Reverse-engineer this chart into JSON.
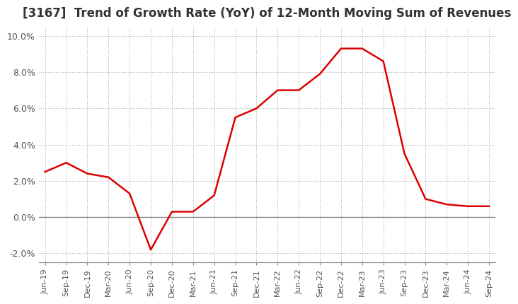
{
  "title": "[3167]  Trend of Growth Rate (YoY) of 12-Month Moving Sum of Revenues",
  "title_fontsize": 12,
  "background_color": "#ffffff",
  "line_color": "#dd0000",
  "ylim": [
    -0.025,
    0.105
  ],
  "yticks": [
    -0.02,
    0.0,
    0.02,
    0.04,
    0.06,
    0.08,
    0.1
  ],
  "ytick_labels": [
    "-2.0%",
    "0.0%",
    "2.0%",
    "4.0%",
    "6.0%",
    "8.0%",
    "10.0%"
  ],
  "grid_color": "#aaaaaa",
  "x_labels": [
    "Jun-19",
    "Sep-19",
    "Dec-19",
    "Mar-20",
    "Jun-20",
    "Sep-20",
    "Dec-20",
    "Mar-21",
    "Jun-21",
    "Sep-21",
    "Dec-21",
    "Mar-22",
    "Jun-22",
    "Sep-22",
    "Dec-22",
    "Mar-23",
    "Jun-23",
    "Sep-23",
    "Dec-23",
    "Mar-24",
    "Jun-24",
    "Sep-24"
  ],
  "values": [
    0.025,
    0.03,
    0.024,
    0.022,
    0.013,
    -0.018,
    0.003,
    0.003,
    0.012,
    0.055,
    0.06,
    0.07,
    0.07,
    0.079,
    0.093,
    0.093,
    0.086,
    0.035,
    0.01,
    0.007,
    0.006,
    0.006
  ]
}
